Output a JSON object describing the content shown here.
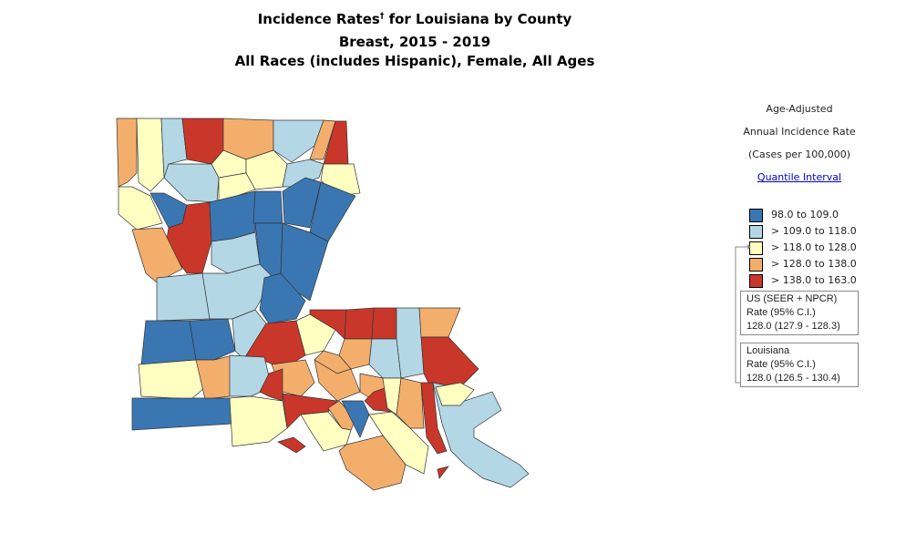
{
  "title": {
    "line1": "Incidence Rates",
    "dagger": "†",
    "line1_suffix": " for Louisiana by County",
    "line2": "Breast, 2015 - 2019",
    "line3": "All Races (includes Hispanic), Female, All Ages"
  },
  "legend": {
    "heading1": "Age-Adjusted",
    "heading2": "Annual Incidence Rate",
    "heading3": "(Cases per 100,000)",
    "link": "Quantile Interval",
    "classes": [
      {
        "label": "98.0  to  109.0",
        "color": "#3a77b2"
      },
      {
        "label": "> 109.0  to  118.0",
        "color": "#b4d7e6"
      },
      {
        "label": "> 118.0  to  128.0",
        "color": "#ffffc2"
      },
      {
        "label": "> 128.0  to  138.0",
        "color": "#f4ae6c"
      },
      {
        "label": "> 138.0  to  163.0",
        "color": "#c9372a"
      }
    ],
    "us_box": {
      "line1": "US (SEER + NPCR)",
      "line2": "Rate  (95% C.I.)",
      "line3": "128.0 (127.9 - 128.3)"
    },
    "state_box": {
      "line1": "Louisiana",
      "line2": "Rate  (95% C.I.)",
      "line3": "128.0 (126.5 - 130.4)"
    }
  },
  "region_classes": [
    3,
    2,
    1,
    4,
    3,
    1,
    3,
    4,
    2,
    2,
    1,
    2,
    1,
    2,
    2,
    0,
    4,
    0,
    0,
    0,
    0,
    3,
    1,
    0,
    0,
    1,
    1,
    0,
    0,
    0,
    1,
    4,
    2,
    4,
    4,
    4,
    1,
    3,
    4,
    3,
    1,
    3,
    2,
    3,
    1,
    3,
    3,
    3,
    4,
    0,
    2,
    4,
    4,
    3,
    2,
    0,
    4,
    2,
    3,
    2,
    3,
    4,
    1,
    2,
    4
  ]
}
